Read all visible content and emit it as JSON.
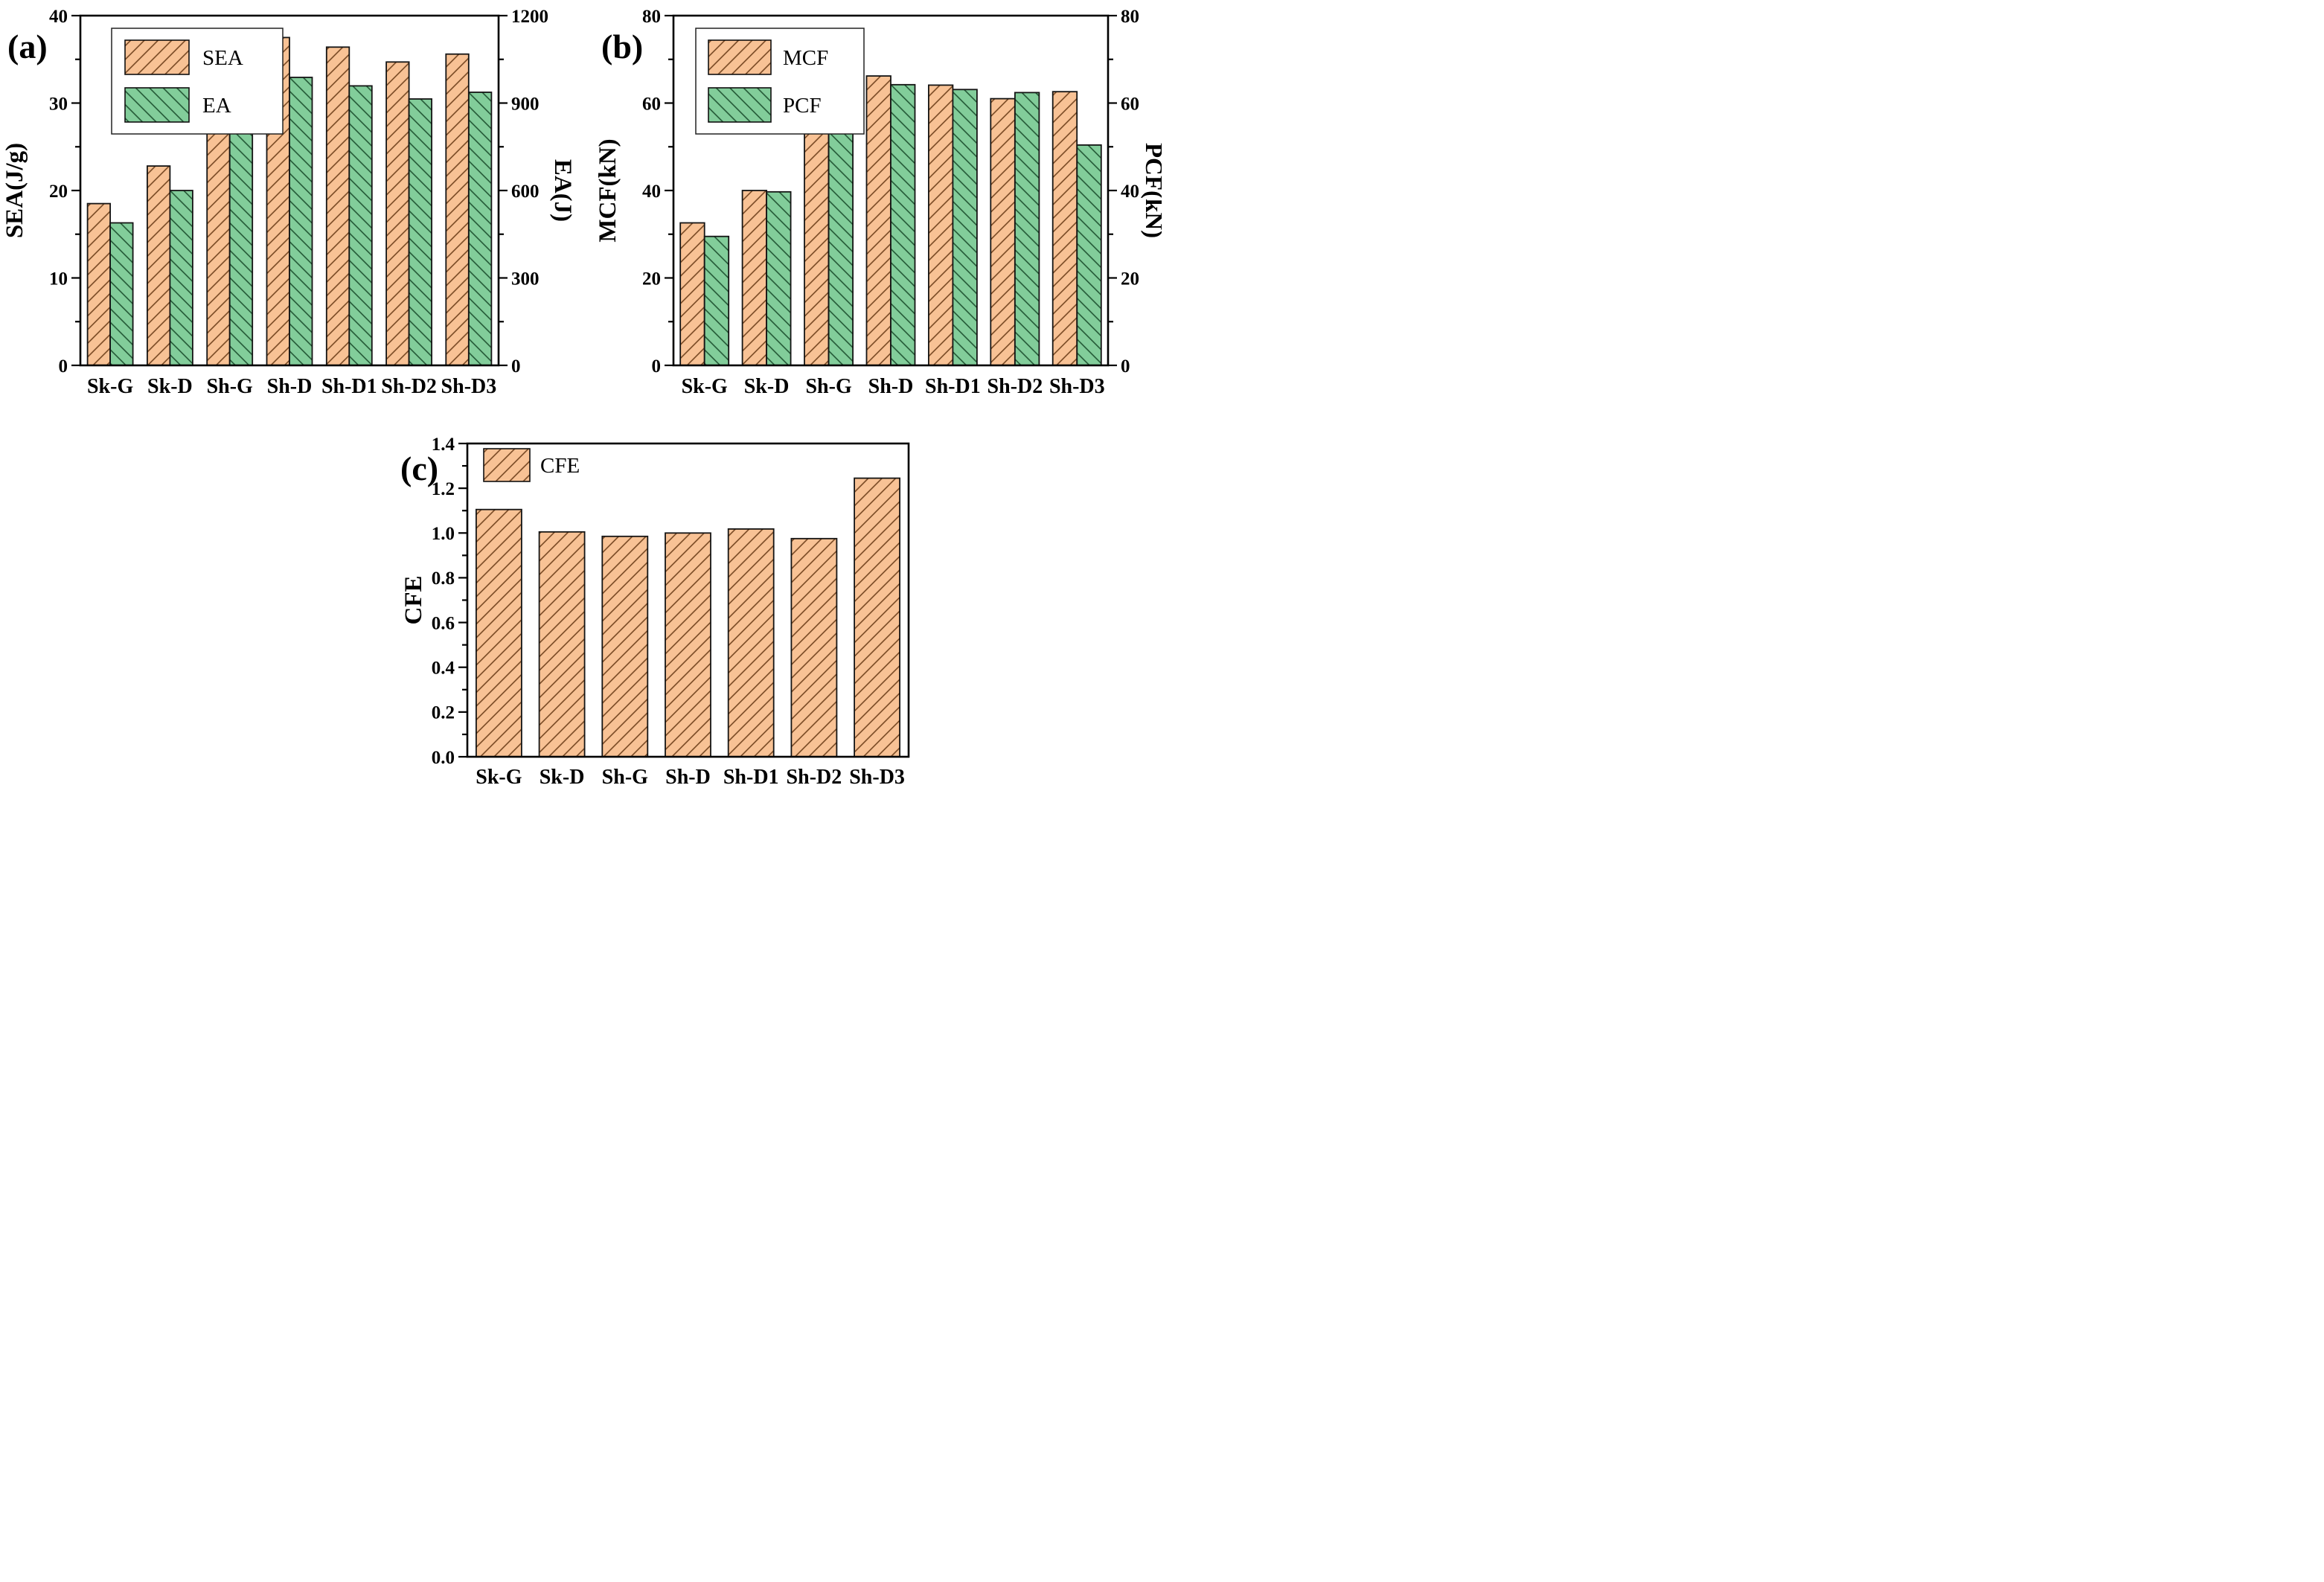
{
  "figure_title": "",
  "categories": [
    "Sk-G",
    "Sk-D",
    "Sh-G",
    "Sh-D",
    "Sh-D1",
    "Sh-D2",
    "Sh-D3"
  ],
  "style": {
    "background": "#ffffff",
    "frame_color": "#000000",
    "bar_edge_color": "#141414",
    "text_color": "#000000",
    "legend_border_color": "#222222",
    "swatches": {
      "orange": {
        "fill": "#f8c295",
        "hatch": "#6e3f1a",
        "hatch_angle": -45
      },
      "green": {
        "fill": "#82cd9a",
        "hatch": "#1c4f2e",
        "hatch_angle": 45
      }
    }
  },
  "chart_data": [
    {
      "type": "bar",
      "panel_label": "(a)",
      "categories": [
        "Sk-G",
        "Sk-D",
        "Sh-G",
        "Sh-D",
        "Sh-D1",
        "Sh-D2",
        "Sh-D3"
      ],
      "series": [
        {
          "name": "SEA",
          "axis": "left",
          "color_key": "orange",
          "values": [
            18.5,
            22.8,
            33.0,
            37.5,
            36.4,
            34.7,
            35.6
          ]
        },
        {
          "name": "EA",
          "axis": "right",
          "color_key": "green",
          "values": [
            489,
            600,
            866,
            988,
            959,
            914,
            937
          ]
        }
      ],
      "left_axis": {
        "label": "SEA(J/g)",
        "range": [
          0,
          40
        ],
        "major_step": 10,
        "minor_step": 5,
        "tick_labels": [
          "0",
          "10",
          "20",
          "30",
          "40"
        ]
      },
      "right_axis": {
        "label": "EA(J)",
        "range": [
          0,
          1200
        ],
        "major_step": 300,
        "minor_step": 150,
        "tick_labels": [
          "0",
          "300",
          "600",
          "900",
          "1200"
        ]
      },
      "legend": {
        "position": "top-left",
        "boxed": true,
        "entries": [
          "SEA",
          "EA"
        ]
      },
      "grid": false
    },
    {
      "type": "bar",
      "panel_label": "(b)",
      "categories": [
        "Sk-G",
        "Sk-D",
        "Sh-G",
        "Sh-D",
        "Sh-D1",
        "Sh-D2",
        "Sh-D3"
      ],
      "series": [
        {
          "name": "MCF",
          "axis": "left",
          "color_key": "orange",
          "values": [
            32.6,
            40.0,
            57.8,
            66.2,
            64.1,
            61.0,
            62.6
          ]
        },
        {
          "name": "PCF",
          "axis": "right",
          "color_key": "green",
          "values": [
            29.5,
            39.7,
            58.7,
            64.2,
            63.1,
            62.4,
            50.4
          ]
        }
      ],
      "left_axis": {
        "label": "MCF(kN)",
        "range": [
          0,
          80
        ],
        "major_step": 20,
        "minor_step": 10,
        "tick_labels": [
          "0",
          "20",
          "40",
          "60",
          "80"
        ]
      },
      "right_axis": {
        "label": "PCF(kN)",
        "range": [
          0,
          80
        ],
        "major_step": 20,
        "minor_step": 10,
        "tick_labels": [
          "0",
          "20",
          "40",
          "60",
          "80"
        ]
      },
      "legend": {
        "position": "top-left",
        "boxed": true,
        "entries": [
          "MCF",
          "PCF"
        ]
      },
      "grid": false
    },
    {
      "type": "bar",
      "panel_label": "(c)",
      "categories": [
        "Sk-G",
        "Sk-D",
        "Sh-G",
        "Sh-D",
        "Sh-D1",
        "Sh-D2",
        "Sh-D3"
      ],
      "series": [
        {
          "name": "CFE",
          "axis": "left",
          "color_key": "orange",
          "values": [
            1.105,
            1.005,
            0.985,
            1.0,
            1.018,
            0.975,
            1.245
          ]
        }
      ],
      "left_axis": {
        "label": "CFE",
        "range": [
          0,
          1.4
        ],
        "major_step": 0.2,
        "minor_step": 0.1,
        "tick_labels": [
          "0.0",
          "0.2",
          "0.4",
          "0.6",
          "0.8",
          "1.0",
          "1.2",
          "1.4"
        ]
      },
      "right_axis": null,
      "legend": {
        "position": "top-left",
        "boxed": false,
        "entries": [
          "CFE"
        ]
      },
      "grid": false
    }
  ]
}
